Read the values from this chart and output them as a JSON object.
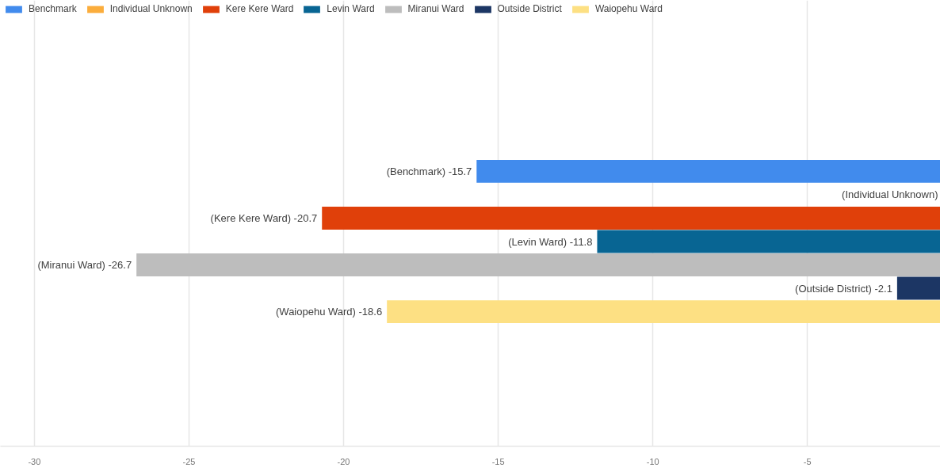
{
  "chart_data": {
    "type": "bar",
    "orientation": "horizontal",
    "categories": [
      null
    ],
    "series": [
      {
        "name": "Benchmark",
        "color": "#418bed",
        "values": [
          -15.7
        ],
        "value_labels": [
          "(Benchmark) -15.7"
        ]
      },
      {
        "name": "Individual Unknown",
        "color": "#fbad3c",
        "values": [
          null
        ],
        "value_labels": [
          "(Individual Unknown)"
        ]
      },
      {
        "name": "Kere Kere Ward",
        "color": "#e0400a",
        "values": [
          -20.7
        ],
        "value_labels": [
          "(Kere Kere Ward) -20.7"
        ]
      },
      {
        "name": "Levin Ward",
        "color": "#086593",
        "values": [
          -11.8
        ],
        "value_labels": [
          "(Levin Ward) -11.8"
        ]
      },
      {
        "name": "Miranui Ward",
        "color": "#bdbdbd",
        "values": [
          -26.7
        ],
        "value_labels": [
          "(Miranui Ward) -26.7"
        ]
      },
      {
        "name": "Outside District",
        "color": "#1c3664",
        "values": [
          -2.1
        ],
        "value_labels": [
          "(Outside District) -2.1"
        ]
      },
      {
        "name": "Waiopehu Ward",
        "color": "#fde083",
        "values": [
          -18.6
        ],
        "value_labels": [
          "(Waiopehu Ward) -18.6"
        ]
      }
    ],
    "xlim": [
      -31.1,
      -0.7
    ],
    "xticks": [
      -30,
      -25,
      -20,
      -15,
      -10,
      -5
    ],
    "grid": "x",
    "legend": "top left",
    "tick_labels": "x"
  }
}
